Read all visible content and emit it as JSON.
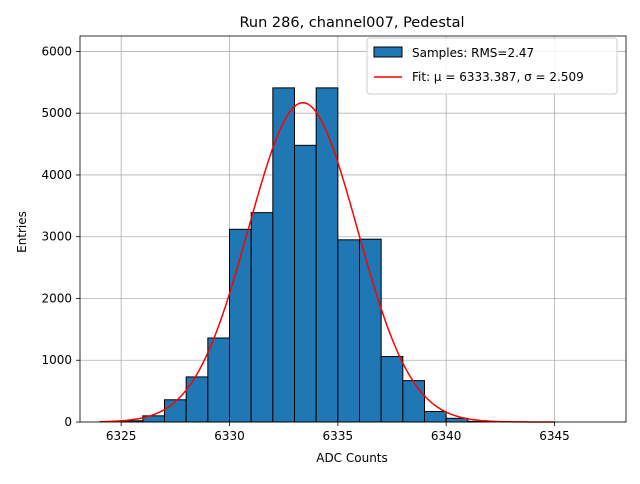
{
  "chart_data": {
    "type": "bar",
    "title": "Run 286, channel007, Pedestal",
    "xlabel": "ADC Counts",
    "ylabel": "Entries",
    "xlim": [
      6323.1,
      6348.3
    ],
    "ylim": [
      0,
      6250
    ],
    "xticks": [
      6325,
      6330,
      6335,
      6340,
      6345
    ],
    "yticks": [
      0,
      1000,
      2000,
      3000,
      4000,
      5000,
      6000
    ],
    "grid": true,
    "legend_position": "top-right",
    "colors": {
      "bars": "#1f77b4",
      "bar_edge": "#000000",
      "fit": "#ff0000",
      "grid": "#b0b0b0"
    },
    "histogram": {
      "name": "Samples: RMS=2.47",
      "bin_width": 1,
      "bins": [
        {
          "left": 6325,
          "count": 20
        },
        {
          "left": 6326,
          "count": 100
        },
        {
          "left": 6327,
          "count": 360
        },
        {
          "left": 6328,
          "count": 730
        },
        {
          "left": 6329,
          "count": 1360
        },
        {
          "left": 6330,
          "count": 3120
        },
        {
          "left": 6331,
          "count": 3390
        },
        {
          "left": 6332,
          "count": 5410
        },
        {
          "left": 6333,
          "count": 4480
        },
        {
          "left": 6334,
          "count": 5410
        },
        {
          "left": 6335,
          "count": 2950
        },
        {
          "left": 6336,
          "count": 2960
        },
        {
          "left": 6337,
          "count": 1060
        },
        {
          "left": 6338,
          "count": 670
        },
        {
          "left": 6339,
          "count": 170
        },
        {
          "left": 6340,
          "count": 60
        },
        {
          "left": 6341,
          "count": 10
        }
      ]
    },
    "fit": {
      "name": "Fit: μ = 6333.387, σ = 2.509",
      "type": "gaussian",
      "mu": 6333.387,
      "sigma": 2.509,
      "amplitude": 5170,
      "x_range": [
        6324,
        6345
      ]
    }
  }
}
